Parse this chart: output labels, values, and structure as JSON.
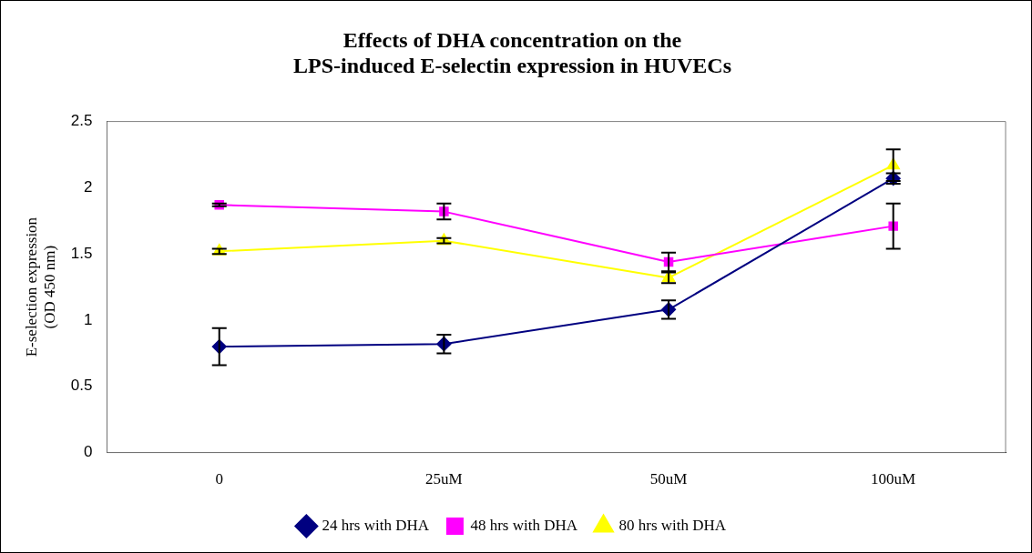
{
  "chart_data": {
    "type": "line",
    "title": "Effects of DHA concentration on the LPS-induced E-selectin expression in HUVECs",
    "ylabel": "E-selection expression (OD 450 nm)",
    "categories": [
      "0",
      "25uM",
      "50uM",
      "100uM"
    ],
    "series": [
      {
        "name": "24 hrs with DHA",
        "color": "#000080",
        "marker": "diamond",
        "values": [
          0.8,
          0.82,
          1.08,
          2.07
        ],
        "errors": [
          0.14,
          0.07,
          0.07,
          0.04
        ]
      },
      {
        "name": "48 hrs with DHA",
        "color": "#ff00ff",
        "marker": "square",
        "values": [
          1.87,
          1.82,
          1.44,
          1.71
        ],
        "errors": [
          0.01,
          0.06,
          0.07,
          0.17
        ]
      },
      {
        "name": "80 hrs with DHA",
        "color": "#ffff00",
        "marker": "triangle",
        "values": [
          1.52,
          1.6,
          1.32,
          2.17
        ],
        "errors": [
          0.02,
          0.02,
          0.04,
          0.12
        ]
      }
    ],
    "ylim": [
      0,
      2.5
    ],
    "yticks": [
      0,
      0.5,
      1,
      1.5,
      2,
      2.5
    ],
    "grid": false,
    "legend": "bottom"
  }
}
